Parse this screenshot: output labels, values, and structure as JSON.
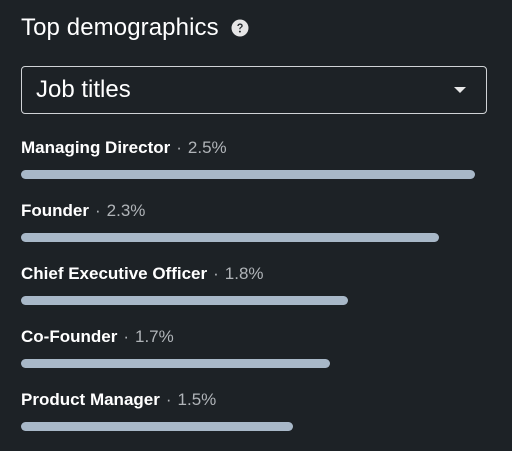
{
  "header": {
    "title": "Top demographics",
    "help_icon": "question-circle-icon"
  },
  "dropdown": {
    "selected": "Job titles",
    "caret_icon": "caret-down-icon"
  },
  "colors": {
    "background": "#1d2226",
    "bar": "#a8b8c8",
    "muted_text": "#b0b4b8"
  },
  "demographics": [
    {
      "name": "Managing Director",
      "separator": "·",
      "percent_label": "2.5%",
      "percent": 2.5
    },
    {
      "name": "Founder",
      "separator": "·",
      "percent_label": "2.3%",
      "percent": 2.3
    },
    {
      "name": "Chief Executive Officer",
      "separator": "·",
      "percent_label": "1.8%",
      "percent": 1.8
    },
    {
      "name": "Co-Founder",
      "separator": "·",
      "percent_label": "1.7%",
      "percent": 1.7
    },
    {
      "name": "Product Manager",
      "separator": "·",
      "percent_label": "1.5%",
      "percent": 1.5
    }
  ]
}
